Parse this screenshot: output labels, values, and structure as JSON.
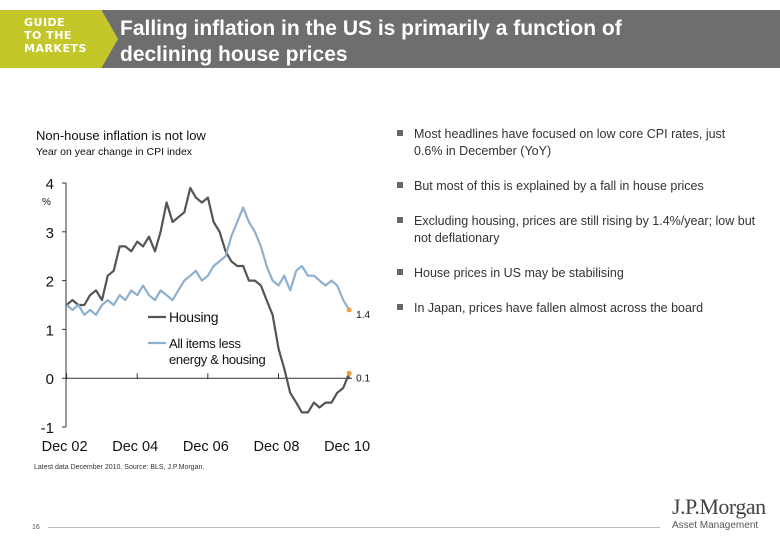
{
  "header": {
    "badge_lines": [
      "GUIDE",
      "TO THE",
      "MARKETS"
    ],
    "title_line1": "Falling inflation in the US is primarily a function of",
    "title_line2": "declining house prices",
    "bar_color": "#6e6e6e",
    "badge_color": "#c3c72a"
  },
  "chart": {
    "title": "Non-house inflation is not low",
    "subtitle": "Year on year change in CPI index"
  },
  "chart_data": {
    "type": "line",
    "ylabel": "%",
    "xlim": [
      2002.9,
      2011.0
    ],
    "ylim": [
      -1,
      4
    ],
    "y_ticks": [
      -1,
      0,
      1,
      2,
      3,
      4
    ],
    "x_tick_positions": [
      2002.917,
      2004.917,
      2006.917,
      2008.917,
      2010.917
    ],
    "x_tick_labels": [
      "Dec 02",
      "Dec 04",
      "Dec 06",
      "Dec 08",
      "Dec 10"
    ],
    "grid": false,
    "legend": "inside-left",
    "series": [
      {
        "name": "Housing",
        "color": "#555555",
        "end_label": "0.1",
        "points": [
          [
            2002.92,
            1.5
          ],
          [
            2003.08,
            1.6
          ],
          [
            2003.25,
            1.5
          ],
          [
            2003.42,
            1.5
          ],
          [
            2003.58,
            1.7
          ],
          [
            2003.75,
            1.8
          ],
          [
            2003.92,
            1.6
          ],
          [
            2004.08,
            2.1
          ],
          [
            2004.25,
            2.2
          ],
          [
            2004.42,
            2.7
          ],
          [
            2004.58,
            2.7
          ],
          [
            2004.75,
            2.6
          ],
          [
            2004.92,
            2.8
          ],
          [
            2005.08,
            2.7
          ],
          [
            2005.25,
            2.9
          ],
          [
            2005.42,
            2.6
          ],
          [
            2005.58,
            3.0
          ],
          [
            2005.75,
            3.6
          ],
          [
            2005.92,
            3.2
          ],
          [
            2006.08,
            3.3
          ],
          [
            2006.25,
            3.4
          ],
          [
            2006.42,
            3.9
          ],
          [
            2006.58,
            3.7
          ],
          [
            2006.75,
            3.6
          ],
          [
            2006.92,
            3.7
          ],
          [
            2007.08,
            3.2
          ],
          [
            2007.25,
            3.0
          ],
          [
            2007.42,
            2.6
          ],
          [
            2007.58,
            2.4
          ],
          [
            2007.75,
            2.3
          ],
          [
            2007.92,
            2.3
          ],
          [
            2008.08,
            2.0
          ],
          [
            2008.25,
            2.0
          ],
          [
            2008.42,
            1.9
          ],
          [
            2008.58,
            1.6
          ],
          [
            2008.75,
            1.3
          ],
          [
            2008.92,
            0.6
          ],
          [
            2009.08,
            0.2
          ],
          [
            2009.25,
            -0.3
          ],
          [
            2009.42,
            -0.5
          ],
          [
            2009.58,
            -0.7
          ],
          [
            2009.75,
            -0.7
          ],
          [
            2009.92,
            -0.5
          ],
          [
            2010.08,
            -0.6
          ],
          [
            2010.25,
            -0.5
          ],
          [
            2010.42,
            -0.5
          ],
          [
            2010.58,
            -0.3
          ],
          [
            2010.75,
            -0.2
          ],
          [
            2010.92,
            0.1
          ]
        ]
      },
      {
        "name": "All items less energy & housing",
        "name_lines": [
          "All items less",
          "energy & housing"
        ],
        "color": "#8eb0cf",
        "end_label": "1.4",
        "points": [
          [
            2002.92,
            1.5
          ],
          [
            2003.08,
            1.4
          ],
          [
            2003.25,
            1.5
          ],
          [
            2003.42,
            1.3
          ],
          [
            2003.58,
            1.4
          ],
          [
            2003.75,
            1.3
          ],
          [
            2003.92,
            1.5
          ],
          [
            2004.08,
            1.6
          ],
          [
            2004.25,
            1.5
          ],
          [
            2004.42,
            1.7
          ],
          [
            2004.58,
            1.6
          ],
          [
            2004.75,
            1.8
          ],
          [
            2004.92,
            1.7
          ],
          [
            2005.08,
            1.9
          ],
          [
            2005.25,
            1.7
          ],
          [
            2005.42,
            1.6
          ],
          [
            2005.58,
            1.8
          ],
          [
            2005.75,
            1.7
          ],
          [
            2005.92,
            1.6
          ],
          [
            2006.08,
            1.8
          ],
          [
            2006.25,
            2.0
          ],
          [
            2006.42,
            2.1
          ],
          [
            2006.58,
            2.2
          ],
          [
            2006.75,
            2.0
          ],
          [
            2006.92,
            2.1
          ],
          [
            2007.08,
            2.3
          ],
          [
            2007.25,
            2.4
          ],
          [
            2007.42,
            2.5
          ],
          [
            2007.58,
            2.9
          ],
          [
            2007.75,
            3.2
          ],
          [
            2007.92,
            3.5
          ],
          [
            2008.08,
            3.2
          ],
          [
            2008.25,
            3.0
          ],
          [
            2008.42,
            2.7
          ],
          [
            2008.58,
            2.3
          ],
          [
            2008.75,
            2.0
          ],
          [
            2008.92,
            1.9
          ],
          [
            2009.08,
            2.1
          ],
          [
            2009.25,
            1.8
          ],
          [
            2009.42,
            2.2
          ],
          [
            2009.58,
            2.3
          ],
          [
            2009.75,
            2.1
          ],
          [
            2009.92,
            2.1
          ],
          [
            2010.08,
            2.0
          ],
          [
            2010.25,
            1.9
          ],
          [
            2010.42,
            2.0
          ],
          [
            2010.58,
            1.9
          ],
          [
            2010.75,
            1.6
          ],
          [
            2010.92,
            1.4
          ]
        ]
      }
    ]
  },
  "bullets": [
    "Most headlines have focused on low core CPI rates, just 0.6% in December (YoY)",
    "But most of this is explained by a fall in house prices",
    "Excluding housing, prices are still rising by 1.4%/year; low but not deflationary",
    "House prices in US may be stabilising",
    "In Japan, prices have fallen almost across the board"
  ],
  "footer": {
    "source": "Latest data December 2010. Source:  BLS, J.P.Morgan.",
    "page_number": "16",
    "logo_main": "J.P.Morgan",
    "logo_sub": "Asset Management"
  }
}
